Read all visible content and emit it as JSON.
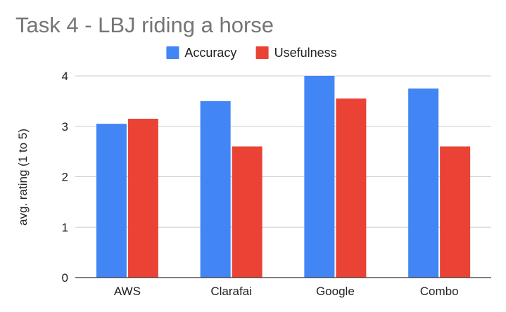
{
  "chart_data": {
    "type": "bar",
    "title": "Task 4 - LBJ riding a horse",
    "xlabel": "",
    "ylabel": "avg. rating (1 to 5)",
    "categories": [
      "AWS",
      "Clarafai",
      "Google",
      "Combo"
    ],
    "series": [
      {
        "name": "Accuracy",
        "color": "#4285f4",
        "values": [
          3.05,
          3.5,
          4.0,
          3.75
        ]
      },
      {
        "name": "Usefulness",
        "color": "#ea4335",
        "values": [
          3.15,
          2.6,
          3.55,
          2.6
        ]
      }
    ],
    "ylim": [
      0,
      4
    ],
    "yticks": [
      "0",
      "1",
      "2",
      "3",
      "4"
    ],
    "grid": true,
    "legend_position": "top-center"
  }
}
